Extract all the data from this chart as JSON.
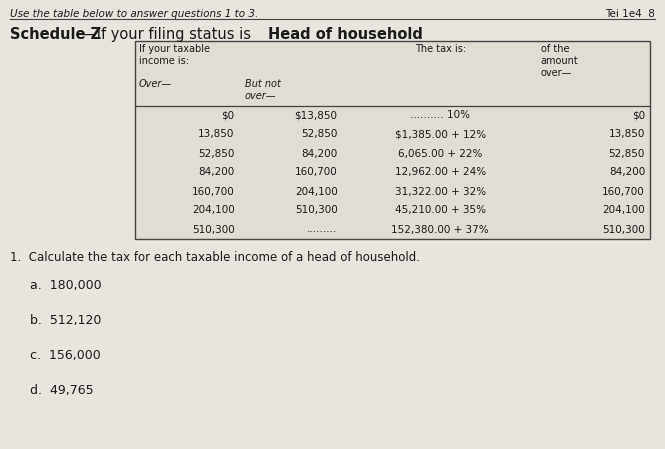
{
  "background_color": "#ccc9c0",
  "page_color": "#e8e5de",
  "header_top_text": "Use the table below to answer questions 1 to 3.",
  "header_top_right": "Tei 1e4  8",
  "title_bold1": "Schedule Z",
  "title_normal": "—If your filing status is ",
  "title_bold2": "Head of household",
  "table_rows": [
    [
      "$0",
      "$13,850",
      ".......... 10%",
      "$0"
    ],
    [
      "13,850",
      "52,850",
      "$1,385.00 + 12%",
      "13,850"
    ],
    [
      "52,850",
      "84,200",
      "6,065.00 + 22%",
      "52,850"
    ],
    [
      "84,200",
      "160,700",
      "12,962.00 + 24%",
      "84,200"
    ],
    [
      "160,700",
      "204,100",
      "31,322.00 + 32%",
      "160,700"
    ],
    [
      "204,100",
      "510,300",
      "45,210.00 + 35%",
      "204,100"
    ],
    [
      "510,300",
      ".........",
      "152,380.00 + 37%",
      "510,300"
    ]
  ],
  "question_text": "1.  Calculate the tax for each taxable income of a head of household.",
  "sub_questions": [
    "a.  180,000",
    "b.  512,120",
    "c.  156,000",
    "d.  49,765"
  ],
  "font_color": "#1a1a1a",
  "table_bg": "#e0ddd5",
  "border_color": "#444444",
  "line_color": "#555555"
}
